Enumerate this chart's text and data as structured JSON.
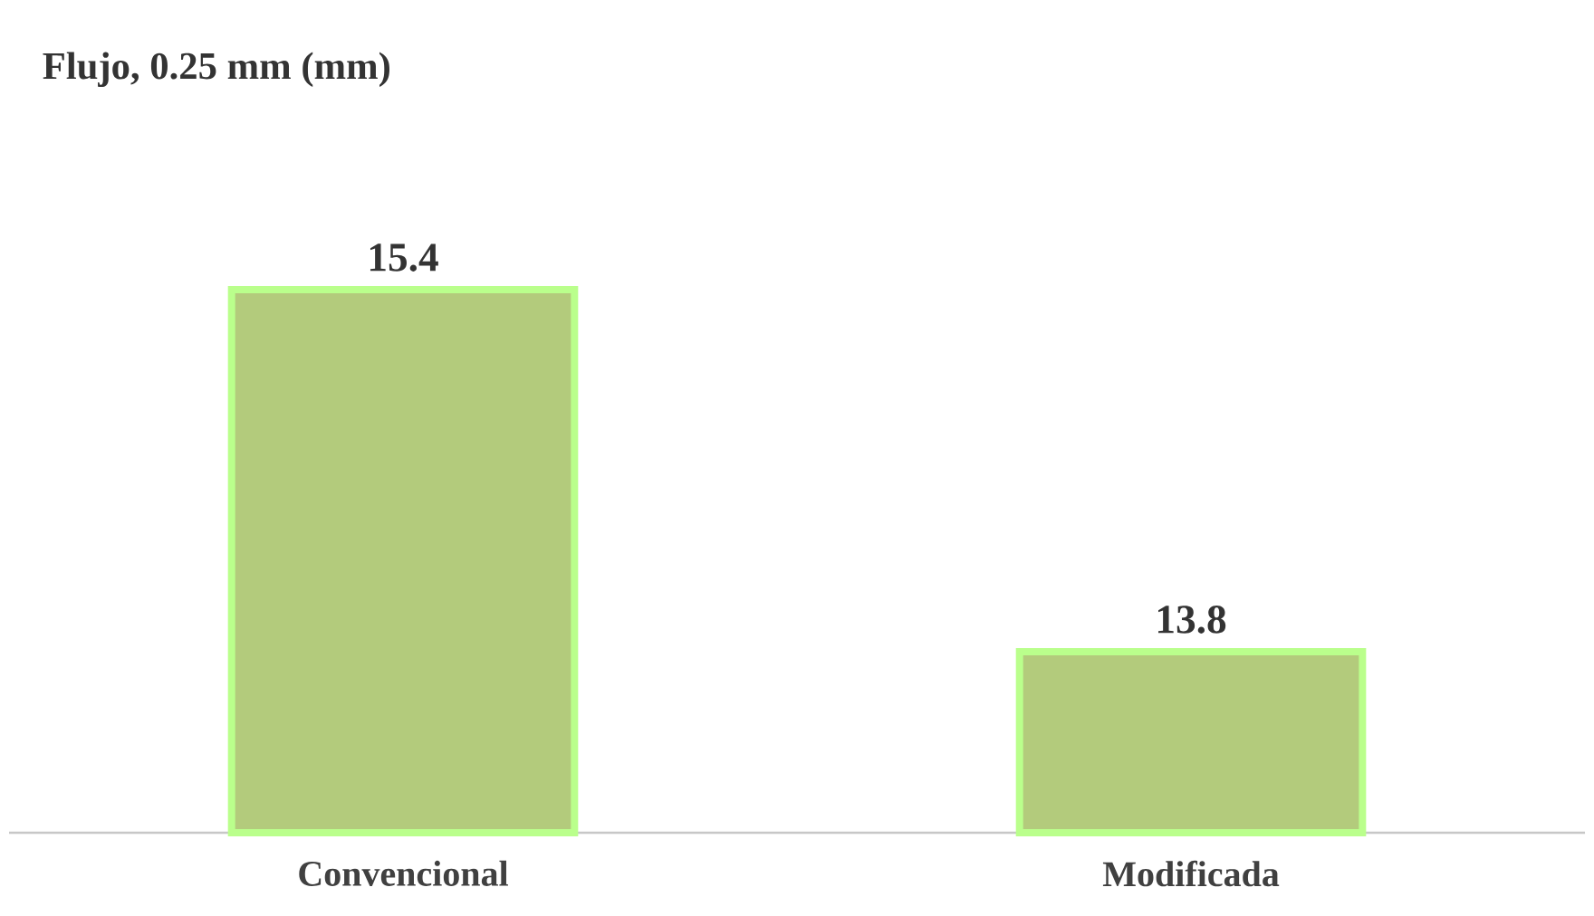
{
  "chart_data": {
    "type": "bar",
    "title": "Flujo, 0.25 mm (mm)",
    "categories": [
      "Convencional",
      "Modificada"
    ],
    "values": [
      15.4,
      13.8
    ],
    "color": "#b3cb7c",
    "ylim": [
      13,
      15.4
    ],
    "data_labels": true,
    "tick_labels": "x",
    "grid": false
  }
}
